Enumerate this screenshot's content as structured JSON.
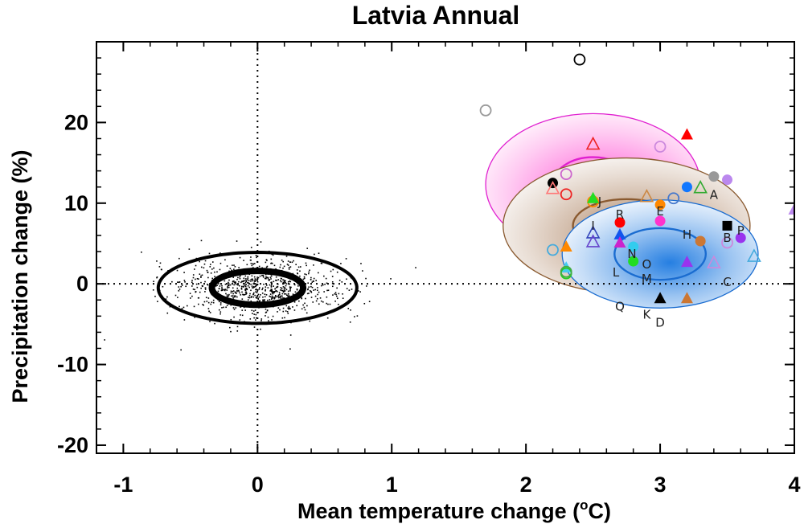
{
  "chart_data": {
    "type": "scatter",
    "title": "Latvia Annual",
    "xlabel": "Mean temperature change (",
    "xlabel_sup": "o",
    "xlabel_end": "C)",
    "ylabel": "Precipitation change (%)",
    "xlim": [
      -1.2,
      4.0
    ],
    "ylim": [
      -21,
      30
    ],
    "x_ticks": [
      -1,
      0,
      1,
      2,
      3,
      4
    ],
    "y_ticks": [
      -20,
      -10,
      0,
      10,
      20
    ],
    "x_tick_labels": [
      "-1",
      "0",
      "1",
      "2",
      "3",
      "4"
    ],
    "y_tick_labels": [
      "-20",
      "-10",
      "0",
      "10",
      "20"
    ],
    "reference_lines": {
      "x": 0,
      "y": 0,
      "style": "dotted"
    },
    "natural_variability": {
      "center": [
        0.0,
        -0.5
      ],
      "inner_ellipse": {
        "rx": 0.34,
        "ry": 2.1,
        "tilt_deg": 14
      },
      "outer_ellipse": {
        "rx": 0.74,
        "ry": 4.4,
        "tilt_deg": 14
      },
      "points": 900,
      "x_spread": 0.32,
      "y_spread": 1.9
    },
    "distributions": [
      {
        "name": "magenta",
        "color": "#ff33cc",
        "outline": "#e020d0",
        "center": [
          2.5,
          12.3
        ],
        "rx": 0.8,
        "ry": 8.8,
        "core_rx": 0.3,
        "core_ry": 3.4
      },
      {
        "name": "brown",
        "color": "#a0704a",
        "outline": "#8a5a30",
        "center": [
          2.75,
          7.2
        ],
        "rx": 0.92,
        "ry": 8.4,
        "core_rx": 0.4,
        "core_ry": 3.3
      },
      {
        "name": "blue",
        "color": "#1a78e0",
        "outline": "#1a6cd0",
        "center": [
          3.0,
          3.7
        ],
        "rx": 0.73,
        "ry": 6.7,
        "core_rx": 0.34,
        "core_ry": 3.2
      }
    ],
    "points": [
      {
        "x": 1.7,
        "y": 21.5,
        "marker": "circle-open",
        "color": "#999999"
      },
      {
        "x": 2.4,
        "y": 27.8,
        "marker": "circle-open",
        "color": "#000000"
      },
      {
        "x": 2.2,
        "y": 12.5,
        "marker": "circle",
        "color": "#000000"
      },
      {
        "x": 2.3,
        "y": 13.6,
        "marker": "circle-open",
        "color": "#cc66cc"
      },
      {
        "x": 2.3,
        "y": 11.1,
        "marker": "circle-open",
        "color": "#ee2222"
      },
      {
        "x": 2.2,
        "y": 11.8,
        "marker": "triangle-open",
        "color": "#ff7777"
      },
      {
        "x": 2.5,
        "y": 17.3,
        "marker": "triangle-open",
        "color": "#ee2222"
      },
      {
        "x": 2.5,
        "y": 10.2,
        "marker": "circle-open",
        "color": "#ff8800"
      },
      {
        "x": 2.5,
        "y": 10.6,
        "marker": "triangle",
        "color": "#22dd22"
      },
      {
        "x": 3.2,
        "y": 18.5,
        "marker": "triangle",
        "color": "#ff0000"
      },
      {
        "x": 3.0,
        "y": 17.0,
        "marker": "circle-open",
        "color": "#cc88dd"
      },
      {
        "x": 3.4,
        "y": 13.3,
        "marker": "circle",
        "color": "#999999"
      },
      {
        "x": 3.5,
        "y": 12.9,
        "marker": "circle",
        "color": "#bb88ee"
      },
      {
        "x": 3.2,
        "y": 12.0,
        "marker": "circle",
        "color": "#1177ff"
      },
      {
        "x": 3.3,
        "y": 11.9,
        "marker": "triangle-open",
        "color": "#33aa33"
      },
      {
        "x": 3.1,
        "y": 10.6,
        "marker": "circle-open",
        "color": "#4477cc"
      },
      {
        "x": 2.9,
        "y": 10.8,
        "marker": "triangle-open",
        "color": "#cc8844"
      },
      {
        "x": 3.0,
        "y": 9.8,
        "marker": "circle",
        "color": "#ff8800"
      },
      {
        "x": 4.0,
        "y": 9.2,
        "marker": "triangle",
        "color": "#bb88ee"
      },
      {
        "x": 3.5,
        "y": 7.2,
        "marker": "square",
        "color": "#000000"
      },
      {
        "x": 2.7,
        "y": 7.6,
        "marker": "circle",
        "color": "#ff0000"
      },
      {
        "x": 3.0,
        "y": 7.8,
        "marker": "circle",
        "color": "#ff33cc"
      },
      {
        "x": 2.5,
        "y": 6.3,
        "marker": "triangle-open",
        "color": "#3344bb"
      },
      {
        "x": 2.5,
        "y": 5.2,
        "marker": "triangle-open",
        "color": "#6644cc"
      },
      {
        "x": 2.7,
        "y": 6.1,
        "marker": "triangle",
        "color": "#1155ee"
      },
      {
        "x": 2.7,
        "y": 5.1,
        "marker": "triangle",
        "color": "#cc22cc"
      },
      {
        "x": 2.3,
        "y": 4.6,
        "marker": "triangle",
        "color": "#ff8800"
      },
      {
        "x": 2.2,
        "y": 4.2,
        "marker": "circle-open",
        "color": "#44aadd"
      },
      {
        "x": 2.3,
        "y": 2.0,
        "marker": "triangle",
        "color": "#44ccee"
      },
      {
        "x": 2.3,
        "y": 1.3,
        "marker": "circle-open",
        "color": "#22cc22"
      },
      {
        "x": 2.8,
        "y": 4.6,
        "marker": "circle",
        "color": "#33ccee"
      },
      {
        "x": 2.8,
        "y": 2.8,
        "marker": "circle",
        "color": "#22dd22"
      },
      {
        "x": 3.3,
        "y": 5.3,
        "marker": "circle",
        "color": "#cc7733"
      },
      {
        "x": 3.5,
        "y": 5.1,
        "marker": "circle-open",
        "color": "#cc88dd"
      },
      {
        "x": 3.6,
        "y": 5.7,
        "marker": "circle",
        "color": "#9933ee"
      },
      {
        "x": 3.2,
        "y": 2.7,
        "marker": "triangle",
        "color": "#9933ee"
      },
      {
        "x": 3.4,
        "y": 2.6,
        "marker": "triangle-open",
        "color": "#cc88dd"
      },
      {
        "x": 3.7,
        "y": 3.4,
        "marker": "triangle-open",
        "color": "#44aadd"
      },
      {
        "x": 3.0,
        "y": -1.8,
        "marker": "triangle",
        "color": "#000000"
      },
      {
        "x": 3.2,
        "y": -1.8,
        "marker": "triangle",
        "color": "#cc7733"
      },
      {
        "x": 2.3,
        "y": 1.5,
        "marker": "circle-open",
        "color": "#44aa44"
      }
    ],
    "letters": [
      {
        "t": "A",
        "x": 3.4,
        "y": 11.0
      },
      {
        "t": "B",
        "x": 3.5,
        "y": 5.7
      },
      {
        "t": "C",
        "x": 3.5,
        "y": 0.2
      },
      {
        "t": "D",
        "x": 3.0,
        "y": -4.8
      },
      {
        "t": "E",
        "x": 3.0,
        "y": 9.0
      },
      {
        "t": "H",
        "x": 3.2,
        "y": 6.1
      },
      {
        "t": "I",
        "x": 2.5,
        "y": 7.2
      },
      {
        "t": "J",
        "x": 2.55,
        "y": 10.2
      },
      {
        "t": "K",
        "x": 2.9,
        "y": -3.8
      },
      {
        "t": "L",
        "x": 2.67,
        "y": 1.4
      },
      {
        "t": "M",
        "x": 2.9,
        "y": 0.6
      },
      {
        "t": "N",
        "x": 2.79,
        "y": 3.7
      },
      {
        "t": "O",
        "x": 2.9,
        "y": 2.4
      },
      {
        "t": "P",
        "x": 3.6,
        "y": 6.6
      },
      {
        "t": "Q",
        "x": 2.7,
        "y": -2.8
      },
      {
        "t": "R",
        "x": 2.7,
        "y": 8.6
      }
    ]
  }
}
